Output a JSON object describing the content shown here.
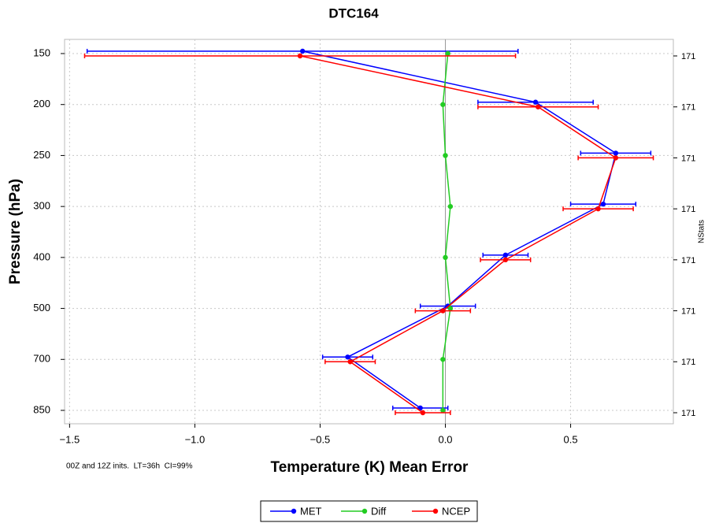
{
  "chart_data": {
    "type": "line",
    "title": "DTC164",
    "x_label": "Temperature (K) Mean Error",
    "y_label": "Pressure (hPa)",
    "annotation": "00Z and 12Z inits.  LT=36h  CI=99%",
    "categories": [
      150,
      200,
      250,
      300,
      400,
      500,
      700,
      850
    ],
    "xlim": [
      -1.52,
      0.91
    ],
    "xticks": [
      {
        "value": -1.5,
        "label": "−1.5"
      },
      {
        "value": -1.0,
        "label": "−1.0"
      },
      {
        "value": -0.5,
        "label": "−0.5"
      },
      {
        "value": 0.0,
        "label": "0.0"
      },
      0.5
    ],
    "grid": true,
    "legend": "bottom",
    "y2_label": "NStats",
    "nstats": [
      171,
      171,
      171,
      171,
      171,
      171,
      171,
      171
    ],
    "series": [
      {
        "name": "MET",
        "color": "#0000ff",
        "values": [
          -0.57,
          0.36,
          0.68,
          0.63,
          0.24,
          0.01,
          -0.39,
          -0.1
        ],
        "errors": [
          0.86,
          0.23,
          0.14,
          0.13,
          0.09,
          0.11,
          0.1,
          0.11
        ]
      },
      {
        "name": "Diff",
        "color": "#22cc22",
        "values": [
          0.01,
          -0.01,
          0.0,
          0.02,
          0.0,
          0.02,
          -0.01,
          -0.01
        ]
      },
      {
        "name": "NCEP",
        "color": "#ff0000",
        "values": [
          -0.58,
          0.37,
          0.68,
          0.61,
          0.24,
          -0.01,
          -0.38,
          -0.09
        ],
        "errors": [
          0.86,
          0.24,
          0.15,
          0.14,
          0.1,
          0.11,
          0.1,
          0.11
        ]
      }
    ]
  }
}
